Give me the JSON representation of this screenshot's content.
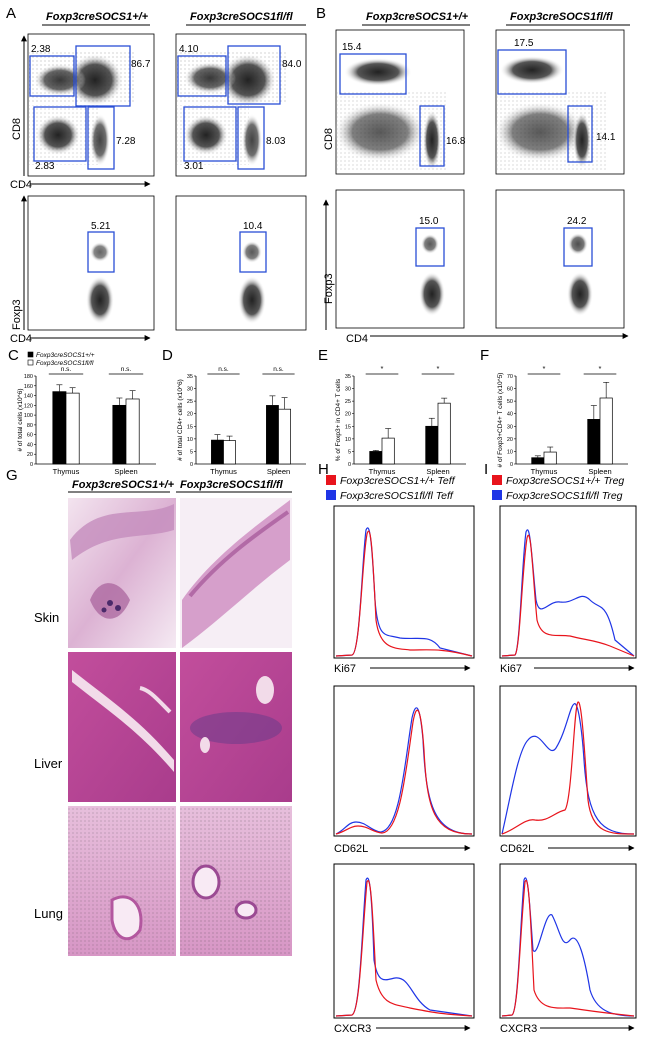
{
  "panels": {
    "A": {
      "letter": "A",
      "headers": [
        "Foxp3creSOCS1+/+",
        "Foxp3creSOCS1fl/fl"
      ],
      "top": {
        "x_label": "CD4",
        "y_label": "CD8",
        "left_gates": [
          "2.38",
          "86.7",
          "2.83",
          "7.28"
        ],
        "right_gates": [
          "4.10",
          "84.0",
          "3.01",
          "8.03"
        ]
      },
      "bottom": {
        "x_label": "CD4",
        "y_label": "Foxp3",
        "left_gate": "5.21",
        "right_gate": "10.4"
      }
    },
    "B": {
      "letter": "B",
      "headers": [
        "Foxp3creSOCS1+/+",
        "Foxp3creSOCS1fl/fl"
      ],
      "top": {
        "y_label": "CD8",
        "left_gates": [
          "15.4",
          "16.8"
        ],
        "right_gates": [
          "17.5",
          "14.1"
        ]
      },
      "bottom": {
        "x_label": "CD4",
        "y_label": "Foxp3",
        "left_gate": "15.0",
        "right_gate": "24.2"
      }
    },
    "G": {
      "letter": "G",
      "headers": [
        "Foxp3creSOCS1+/+",
        "Foxp3creSOCS1fl/fl"
      ],
      "rows": [
        "Skin",
        "Liver",
        "Lung"
      ]
    },
    "H": {
      "letter": "H",
      "legend": [
        "Foxp3creSOCS1+/+ Teff",
        "Foxp3creSOCS1fl/fl Teff"
      ],
      "markers": [
        "Ki67",
        "CD62L",
        "CXCR3"
      ]
    },
    "I": {
      "letter": "I",
      "legend": [
        "Foxp3creSOCS1+/+ Treg",
        "Foxp3creSOCS1fl/fl Treg"
      ],
      "markers": [
        "Ki67",
        "CD62L",
        "CXCR3"
      ]
    }
  },
  "colors": {
    "wt": "#000000",
    "ko": "#ffffff",
    "red": "#e8141c",
    "blue": "#1f35e6",
    "gate": "#2a4fd6"
  },
  "chart_data": [
    {
      "type": "bar",
      "panel": "C",
      "ylabel": "# of total cells (x10^6)",
      "legend": [
        "Foxp3creSOCS1+/+",
        "Foxp3creSOCS1fl/fl"
      ],
      "categories": [
        "Thymus",
        "Spleen"
      ],
      "series": [
        {
          "name": "Foxp3creSOCS1+/+",
          "values": [
            148,
            120
          ],
          "err": [
            14,
            15
          ]
        },
        {
          "name": "Foxp3creSOCS1fl/fl",
          "values": [
            145,
            133
          ],
          "err": [
            11,
            17
          ]
        }
      ],
      "ylim": [
        0,
        180
      ],
      "yticks": [
        0,
        20,
        40,
        60,
        80,
        100,
        120,
        140,
        160,
        180
      ],
      "sig": [
        "n.s.",
        "n.s."
      ]
    },
    {
      "type": "bar",
      "panel": "D",
      "ylabel": "# of total CD4+ cells (x10^6)",
      "categories": [
        "Thymus",
        "Spleen"
      ],
      "series": [
        {
          "name": "Foxp3creSOCS1+/+",
          "values": [
            9.5,
            23.3
          ],
          "err": [
            2.2,
            3.8
          ]
        },
        {
          "name": "Foxp3creSOCS1fl/fl",
          "values": [
            9.3,
            21.8
          ],
          "err": [
            1.8,
            4.6
          ]
        }
      ],
      "ylim": [
        0,
        35
      ],
      "yticks": [
        0,
        5,
        10,
        15,
        20,
        25,
        30,
        35
      ],
      "sig": [
        "n.s.",
        "n.s."
      ]
    },
    {
      "type": "bar",
      "panel": "E",
      "ylabel": "% of Foxp3+ in CD4+ T cells",
      "categories": [
        "Thymus",
        "Spleen"
      ],
      "series": [
        {
          "name": "Foxp3creSOCS1+/+",
          "values": [
            5,
            15
          ],
          "err": [
            0.4,
            3.2
          ]
        },
        {
          "name": "Foxp3creSOCS1fl/fl",
          "values": [
            10.3,
            24.2
          ],
          "err": [
            3.8,
            2
          ]
        }
      ],
      "ylim": [
        0,
        35
      ],
      "yticks": [
        0,
        5,
        10,
        15,
        20,
        25,
        30,
        35
      ],
      "sig": [
        "*",
        "*"
      ]
    },
    {
      "type": "bar",
      "panel": "F",
      "ylabel": "# of Foxp3+CD4+ T cells (x10^5)",
      "categories": [
        "Thymus",
        "Spleen"
      ],
      "series": [
        {
          "name": "Foxp3creSOCS1+/+",
          "values": [
            5,
            35.5
          ],
          "err": [
            1.5,
            11
          ]
        },
        {
          "name": "Foxp3creSOCS1fl/fl",
          "values": [
            9.5,
            52.5
          ],
          "err": [
            4,
            12.5
          ]
        }
      ],
      "ylim": [
        0,
        70
      ],
      "yticks": [
        0,
        10,
        20,
        30,
        40,
        50,
        60,
        70
      ],
      "sig": [
        "*",
        "*"
      ]
    }
  ]
}
